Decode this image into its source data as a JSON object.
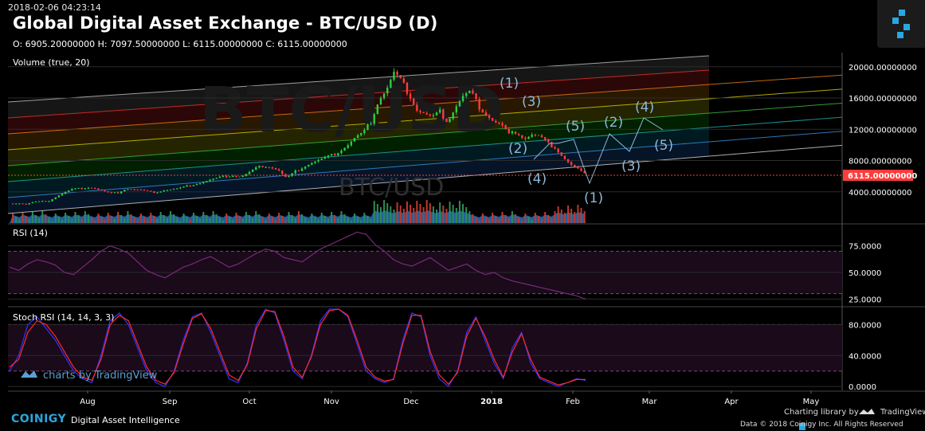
{
  "header": {
    "timestamp": "2018-02-06 04:23:14",
    "title": "Global Digital Asset Exchange - BTC/USD (D)",
    "ohlc": "O: 6905.20000000 H: 7097.50000000 L: 6115.00000000 C: 6115.00000000"
  },
  "watermark": {
    "big": "BTC/USD",
    "small": "BTC/USD",
    "tv": "charts by TradingView"
  },
  "colors": {
    "up": "#2ecc40",
    "down": "#ff3b3b",
    "volume_up": "#2e8b57",
    "volume_down": "#c0392b",
    "volume_area": "#2a7fd4",
    "rsi": "#7a2a7a",
    "stoch_k": "#3333ff",
    "stoch_d": "#ff2a2a",
    "elliott": "#8fb7d6",
    "price_line": "#ff3b3b",
    "brand": "#2aa7e0"
  },
  "footer": {
    "brand": "COINIGY",
    "tagline": "Digital Asset Intelligence",
    "charting": "Charting library by",
    "tv_brand": "TradingView",
    "copyright": "Data © 2018     Coinigy Inc. All Rights Reserved"
  },
  "chart_data": [
    {
      "type": "candlestick",
      "pane": "price",
      "label": "Volume (true, 20)",
      "yaxis_ticks": [
        "4000.00000000",
        "8000.00000000",
        "12000.00000000",
        "16000.00000000",
        "20000.00000000"
      ],
      "ylim": [
        0,
        21000
      ],
      "last_price_label": "6115.00000000",
      "last_price": 6115,
      "x_ticks": [
        "Aug",
        "Sep",
        "Oct",
        "Nov",
        "Dec",
        "2018",
        "Feb",
        "Mar",
        "Apr",
        "May"
      ],
      "close_series": [
        [
          0,
          2500
        ],
        [
          8,
          2550
        ],
        [
          15,
          2400
        ],
        [
          22,
          2700
        ],
        [
          29,
          2750
        ],
        [
          36,
          2850
        ],
        [
          43,
          3400
        ],
        [
          50,
          3900
        ],
        [
          57,
          4300
        ],
        [
          64,
          4400
        ],
        [
          71,
          4600
        ],
        [
          78,
          4450
        ],
        [
          85,
          4100
        ],
        [
          92,
          3800
        ],
        [
          99,
          3900
        ],
        [
          106,
          4400
        ],
        [
          113,
          4300
        ],
        [
          120,
          4250
        ],
        [
          127,
          4000
        ],
        [
          134,
          3950
        ],
        [
          141,
          4200
        ],
        [
          148,
          4300
        ],
        [
          155,
          4450
        ],
        [
          162,
          4700
        ],
        [
          169,
          5000
        ],
        [
          176,
          5200
        ],
        [
          183,
          5500
        ],
        [
          190,
          5750
        ],
        [
          197,
          6000
        ],
        [
          204,
          6100
        ],
        [
          211,
          5900
        ],
        [
          218,
          6400
        ],
        [
          225,
          7000
        ],
        [
          232,
          7350
        ],
        [
          239,
          7150
        ],
        [
          246,
          6700
        ],
        [
          253,
          5700
        ],
        [
          260,
          6500
        ],
        [
          267,
          7100
        ],
        [
          274,
          7600
        ],
        [
          281,
          8000
        ],
        [
          288,
          8300
        ],
        [
          295,
          8700
        ],
        [
          302,
          9300
        ],
        [
          309,
          10000
        ],
        [
          316,
          11000
        ],
        [
          323,
          11500
        ],
        [
          330,
          13000
        ],
        [
          337,
          15800
        ],
        [
          344,
          17000
        ],
        [
          351,
          19200
        ],
        [
          358,
          18000
        ],
        [
          365,
          16500
        ],
        [
          372,
          14500
        ],
        [
          379,
          14000
        ],
        [
          386,
          13500
        ],
        [
          393,
          14200
        ],
        [
          400,
          13000
        ],
        [
          407,
          14800
        ],
        [
          414,
          16200
        ],
        [
          421,
          16800
        ],
        [
          428,
          15000
        ],
        [
          435,
          14000
        ],
        [
          442,
          13000
        ],
        [
          449,
          12600
        ],
        [
          456,
          11300
        ],
        [
          463,
          11700
        ],
        [
          470,
          10800
        ],
        [
          477,
          11300
        ],
        [
          484,
          11100
        ],
        [
          491,
          10200
        ],
        [
          498,
          9700
        ],
        [
          505,
          8500
        ],
        [
          512,
          7500
        ],
        [
          519,
          6900
        ],
        [
          526,
          6115
        ]
      ],
      "elliott_waves": [
        "(1)",
        "(2)",
        "(3)",
        "(4)",
        "(5)",
        "(1)",
        "(2)",
        "(3)",
        "(4)",
        "(5)"
      ]
    },
    {
      "type": "line",
      "pane": "rsi",
      "label": "RSI (14)",
      "yaxis_ticks": [
        "25.0000",
        "50.0000",
        "75.0000"
      ],
      "ylim": [
        20,
        95
      ],
      "levels": [
        30,
        70
      ],
      "values": [
        55,
        52,
        58,
        62,
        60,
        57,
        50,
        48,
        55,
        62,
        70,
        75,
        72,
        68,
        60,
        52,
        48,
        45,
        50,
        55,
        58,
        62,
        65,
        60,
        55,
        58,
        63,
        68,
        72,
        70,
        64,
        62,
        60,
        66,
        72,
        76,
        80,
        84,
        88,
        86,
        76,
        70,
        62,
        58,
        56,
        60,
        64,
        58,
        52,
        55,
        58,
        52,
        48,
        50,
        45,
        42,
        40,
        38,
        36,
        34,
        32,
        30,
        28,
        25
      ]
    },
    {
      "type": "line",
      "pane": "stoch_rsi",
      "label": "Stoch RSI (14, 14, 3, 3)",
      "yaxis_ticks": [
        "0.0000",
        "40.0000",
        "80.0000"
      ],
      "ylim": [
        -5,
        100
      ],
      "levels": [
        20,
        80
      ],
      "k": [
        20,
        40,
        80,
        90,
        75,
        60,
        40,
        20,
        10,
        5,
        40,
        85,
        95,
        80,
        50,
        20,
        5,
        0,
        20,
        60,
        90,
        95,
        70,
        40,
        10,
        5,
        30,
        80,
        100,
        95,
        60,
        20,
        10,
        40,
        85,
        100,
        100,
        90,
        55,
        20,
        10,
        5,
        10,
        60,
        95,
        90,
        40,
        10,
        0,
        20,
        70,
        90,
        60,
        30,
        10,
        50,
        70,
        30,
        10,
        5,
        0,
        5,
        10,
        8
      ],
      "d": [
        25,
        35,
        70,
        85,
        80,
        65,
        45,
        25,
        12,
        8,
        35,
        80,
        92,
        85,
        55,
        25,
        8,
        3,
        18,
        55,
        88,
        94,
        75,
        45,
        15,
        8,
        28,
        75,
        98,
        97,
        65,
        25,
        12,
        38,
        80,
        98,
        100,
        92,
        60,
        25,
        12,
        7,
        9,
        55,
        92,
        92,
        45,
        15,
        3,
        18,
        65,
        88,
        65,
        35,
        12,
        45,
        68,
        35,
        12,
        7,
        2,
        5,
        9,
        9
      ]
    }
  ]
}
